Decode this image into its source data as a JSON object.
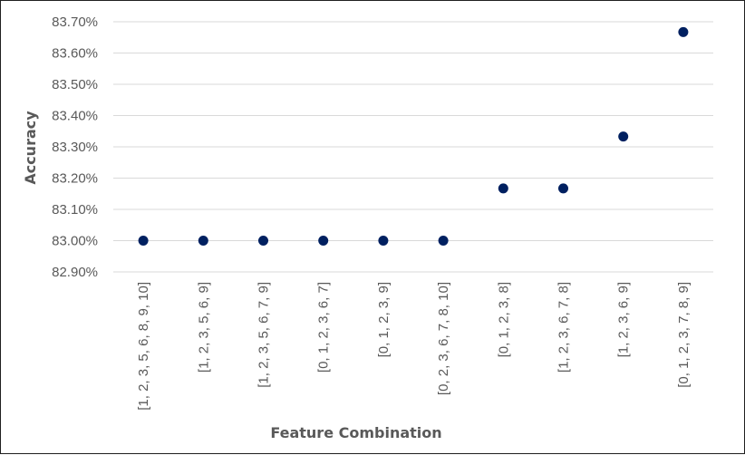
{
  "chart_data": {
    "type": "scatter",
    "title": "",
    "xlabel": "Feature Combination",
    "ylabel": "Accuracy",
    "categories": [
      "[1, 2, 3, 5, 6, 8, 9, 10]",
      "[1, 2, 3, 5, 6, 9]",
      "[1, 2, 3, 5, 6, 7, 9]",
      "[0, 1, 2, 3, 6, 7]",
      "[0, 1, 2, 3, 9]",
      "[0, 2, 3, 6, 7, 8, 10]",
      "[0, 1, 2, 3, 8]",
      "[1, 2, 3, 6, 7, 8]",
      "[1, 2, 3, 6, 9]",
      "[0, 1, 2, 3, 7, 8, 9]"
    ],
    "values": [
      83.0,
      83.0,
      83.0,
      83.0,
      83.0,
      83.0,
      83.167,
      83.167,
      83.333,
      83.667
    ],
    "ylim": [
      82.9,
      83.7
    ],
    "y_ticks": [
      "82.90%",
      "83.00%",
      "83.10%",
      "83.20%",
      "83.30%",
      "83.40%",
      "83.50%",
      "83.60%",
      "83.70%"
    ],
    "grid": true,
    "marker_color": "#002060",
    "grid_color": "#d9d9d9"
  }
}
